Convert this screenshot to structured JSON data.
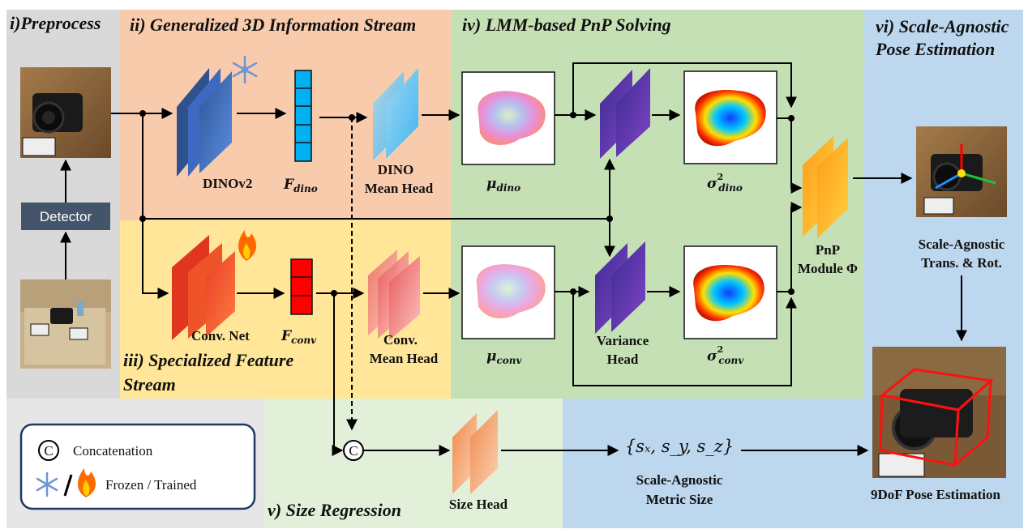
{
  "panels": {
    "preprocess": "i)Preprocess",
    "generalized": "ii) Generalized 3D Information Stream",
    "specialized_line1": "iii) Specialized Feature",
    "specialized_line2": "Stream",
    "pnp_solving": "iv) LMM-based PnP Solving",
    "size_regression": "v) Size Regression",
    "scale_agnostic_line1": "vi) Scale-Agnostic",
    "scale_agnostic_line2": "Pose Estimation"
  },
  "labels": {
    "detector": "Detector",
    "dinov2": "DINOv2",
    "f_dino_main": "F",
    "f_dino_sub": "dino",
    "f_conv_main": "F",
    "f_conv_sub": "conv",
    "dino_mean_head_line1": "DINO",
    "dino_mean_head_line2": "Mean Head",
    "conv_net": "Conv. Net",
    "conv_mean_head_line1": "Conv.",
    "conv_mean_head_line2": "Mean Head",
    "mu_dino_main": "μ",
    "mu_dino_sub": "dino",
    "mu_conv_main": "μ",
    "mu_conv_sub": "conv",
    "sigma_dino_main": "σ",
    "sigma_dino_sup": "2",
    "sigma_dino_sub": "dino",
    "sigma_conv_main": "σ",
    "sigma_conv_sup": "2",
    "sigma_conv_sub": "conv",
    "variance_head_line1": "Variance",
    "variance_head_line2": "Head",
    "pnp_line1": "PnP",
    "pnp_line2": "Module Φ",
    "scale_trans_line1": "Scale-Agnostic",
    "scale_trans_line2": "Trans. & Rot.",
    "size_head": "Size Head",
    "metric_size_set": "{sₓ, s_y, s_z}",
    "metric_size_line1": "Scale-Agnostic",
    "metric_size_line2": "Metric Size",
    "final_output": "9DoF Pose Estimation",
    "concat_symbol": "C"
  },
  "legend": {
    "concat_symbol": "C",
    "concatenation": "Concatenation",
    "frozen_trained": "Frozen / Trained"
  },
  "colors": {
    "preprocess_bg": "#d9d9d9",
    "generalized_bg": "#f8cbad",
    "specialized_bg": "#ffe699",
    "pnp_bg": "#c5e0b4",
    "size_bg": "#e2f0d9",
    "scale_bg": "#bdd7ee",
    "legend_bg": "#e7e6e6",
    "detector": "#44546a",
    "dinov2_blue": "#4472c4",
    "feature_cyan": "#00b0f0",
    "conv_red": "#ff0000",
    "variance_purple": "#7030a0",
    "pnp_orange": "#ffc000"
  },
  "icons": {
    "frozen": "snowflake-icon",
    "trained": "flame-icon",
    "concat": "concat-circle-icon"
  }
}
